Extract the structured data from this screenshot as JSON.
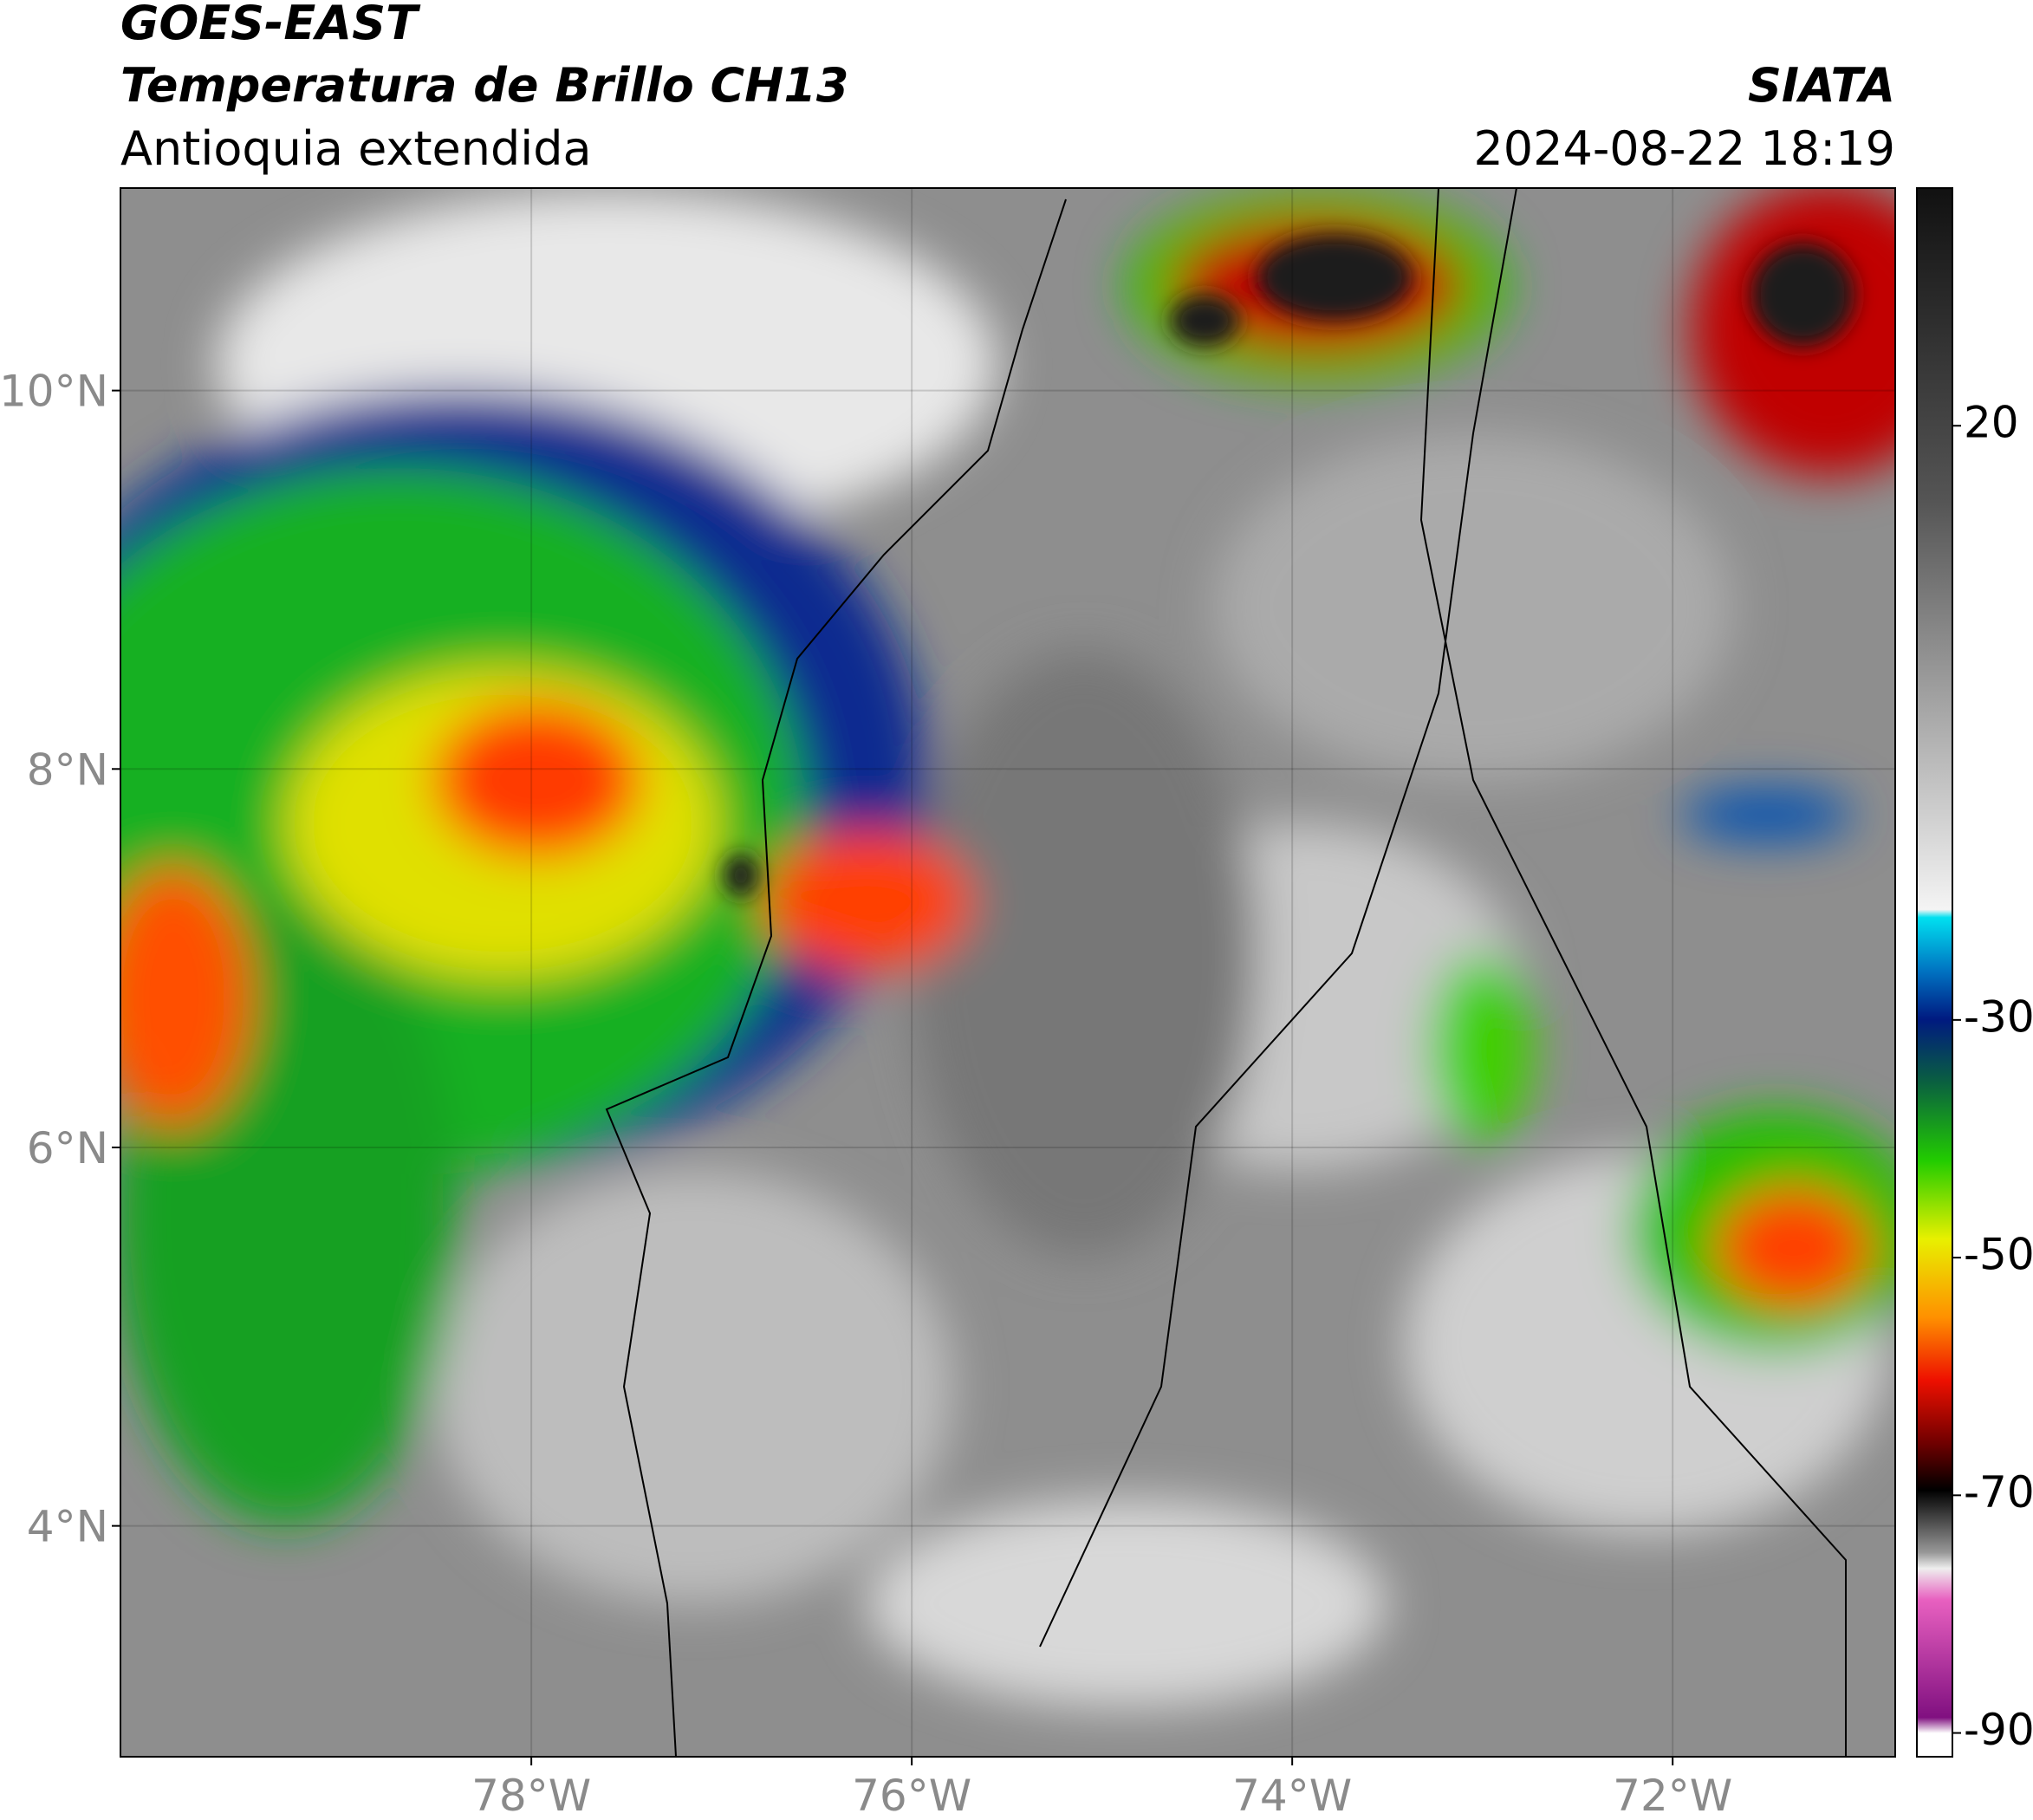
{
  "header": {
    "satellite": "GOES-EAST",
    "product": "Temperatura de Brillo CH13",
    "region": "Antioquia extendida",
    "agency": "SIATA",
    "datetime": "2024-08-22 18:19"
  },
  "map": {
    "xlim": [
      -80.16,
      -70.83
    ],
    "ylim": [
      2.78,
      11.07
    ],
    "grid": true,
    "xticks": [
      {
        "value": -78,
        "label": "78°W"
      },
      {
        "value": -76,
        "label": "76°W"
      },
      {
        "value": -74,
        "label": "74°W"
      },
      {
        "value": -72,
        "label": "72°W"
      }
    ],
    "yticks": [
      {
        "value": 4,
        "label": "4°N"
      },
      {
        "value": 6,
        "label": "6°N"
      },
      {
        "value": 8,
        "label": "8°N"
      },
      {
        "value": 10,
        "label": "10°N"
      }
    ]
  },
  "colorbar": {
    "lim": [
      -92,
      40
    ],
    "ticks": [
      20,
      -30,
      -50,
      -70,
      -90
    ]
  }
}
